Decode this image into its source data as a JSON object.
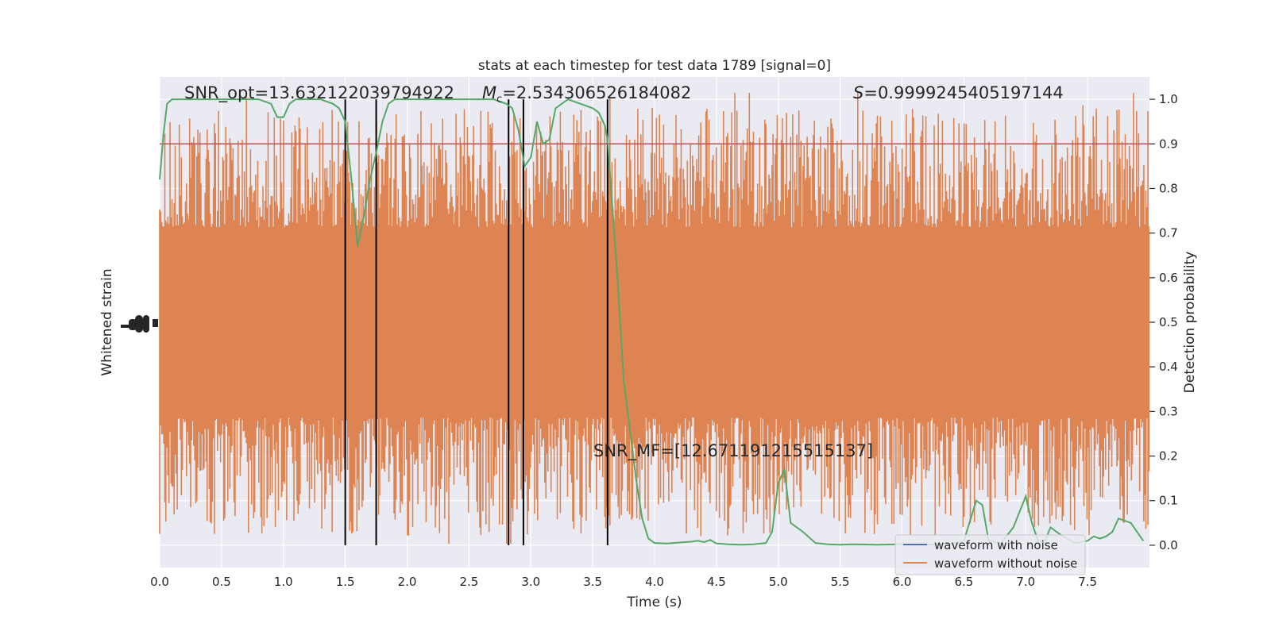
{
  "chart_data": {
    "type": "line",
    "title": "stats at each timestep for test data 1789 [signal=0]",
    "xlabel": "Time (s)",
    "ylabel_left": "Whitened strain",
    "ylabel_right": "Detection probability",
    "xlim": [
      0.0,
      8.0
    ],
    "ylim_right": [
      -0.05,
      1.05
    ],
    "x_ticks": [
      "0.0",
      "0.5",
      "1.0",
      "1.5",
      "2.0",
      "2.5",
      "3.0",
      "3.5",
      "4.0",
      "4.5",
      "5.0",
      "5.5",
      "6.0",
      "6.5",
      "7.0",
      "7.5"
    ],
    "x_tick_values": [
      0.0,
      0.5,
      1.0,
      1.5,
      2.0,
      2.5,
      3.0,
      3.5,
      4.0,
      4.5,
      5.0,
      5.5,
      6.0,
      6.5,
      7.0,
      7.5
    ],
    "y_right_ticks": [
      "0.0",
      "0.1",
      "0.2",
      "0.3",
      "0.4",
      "0.5",
      "0.6",
      "0.7",
      "0.8",
      "0.9",
      "1.0"
    ],
    "y_right_tick_values": [
      0.0,
      0.1,
      0.2,
      0.3,
      0.4,
      0.5,
      0.6,
      0.7,
      0.8,
      0.9,
      1.0
    ],
    "annotations": {
      "snr_opt": "SNR_opt=13.632122039794922",
      "mc_symbol": "M",
      "mc_subscript": "c",
      "mc_value": "=2.534306526184082",
      "s_symbol": "S",
      "s_value": "=0.9999245405197144",
      "snr_mf": "SNR_MF=[12.671191215515137]"
    },
    "threshold": 0.9,
    "vertical_lines_x": [
      1.5,
      1.75,
      2.82,
      2.94,
      3.62
    ],
    "legend": {
      "placement": "bottom-right",
      "entries": [
        "waveform with noise",
        "waveform without noise"
      ]
    },
    "colors": {
      "waveform_with_noise": "#4c72b0",
      "waveform_without_noise": "#dd8452",
      "detection_probability": "#55a868",
      "threshold": "#c44e52",
      "plot_background": "#eaeaf2"
    },
    "series": [
      {
        "name": "waveform with noise",
        "style": "noise-band"
      },
      {
        "name": "waveform without noise",
        "style": "noise-band"
      },
      {
        "style": "line",
        "x": [
          0.0,
          0.03,
          0.06,
          0.1,
          0.2,
          0.3,
          0.4,
          0.5,
          0.6,
          0.7,
          0.8,
          0.9,
          0.95,
          1.0,
          1.05,
          1.1,
          1.2,
          1.3,
          1.4,
          1.45,
          1.5,
          1.55,
          1.6,
          1.65,
          1.7,
          1.75,
          1.8,
          1.85,
          1.9,
          2.0,
          2.2,
          2.4,
          2.6,
          2.7,
          2.8,
          2.85,
          2.9,
          2.95,
          3.0,
          3.05,
          3.1,
          3.15,
          3.2,
          3.3,
          3.4,
          3.5,
          3.55,
          3.6,
          3.62,
          3.7,
          3.75,
          3.8,
          3.85,
          3.9,
          3.95,
          4.0,
          4.1,
          4.2,
          4.3,
          4.35,
          4.4,
          4.45,
          4.5,
          4.6,
          4.7,
          4.8,
          4.9,
          4.95,
          5.0,
          5.05,
          5.1,
          5.2,
          5.3,
          5.4,
          5.5,
          5.6,
          5.8,
          6.0,
          6.2,
          6.4,
          6.5,
          6.6,
          6.65,
          6.7,
          6.8,
          6.9,
          7.0,
          7.05,
          7.1,
          7.15,
          7.2,
          7.3,
          7.4,
          7.5,
          7.55,
          7.6,
          7.65,
          7.7,
          7.75,
          7.85,
          7.95
        ],
        "y": [
          0.82,
          0.92,
          0.99,
          1.0,
          1.0,
          1.0,
          1.0,
          1.0,
          1.0,
          1.0,
          1.0,
          0.99,
          0.96,
          0.96,
          0.99,
          1.0,
          1.0,
          1.0,
          0.99,
          0.98,
          0.95,
          0.82,
          0.67,
          0.74,
          0.82,
          0.88,
          0.95,
          0.99,
          1.0,
          1.0,
          1.0,
          1.0,
          1.0,
          1.0,
          0.99,
          0.98,
          0.93,
          0.85,
          0.87,
          0.95,
          0.9,
          0.91,
          0.98,
          1.0,
          0.99,
          0.98,
          0.97,
          0.94,
          0.91,
          0.6,
          0.37,
          0.26,
          0.15,
          0.06,
          0.015,
          0.005,
          0.004,
          0.006,
          0.008,
          0.01,
          0.007,
          0.012,
          0.004,
          0.002,
          0.001,
          0.002,
          0.005,
          0.03,
          0.14,
          0.17,
          0.05,
          0.03,
          0.005,
          0.002,
          0.001,
          0.002,
          0.001,
          0.002,
          0.001,
          0.003,
          0.01,
          0.1,
          0.09,
          0.01,
          0.005,
          0.04,
          0.11,
          0.05,
          0.01,
          0.005,
          0.04,
          0.02,
          0.005,
          0.01,
          0.02,
          0.015,
          0.02,
          0.03,
          0.06,
          0.05,
          0.01
        ]
      }
    ]
  }
}
